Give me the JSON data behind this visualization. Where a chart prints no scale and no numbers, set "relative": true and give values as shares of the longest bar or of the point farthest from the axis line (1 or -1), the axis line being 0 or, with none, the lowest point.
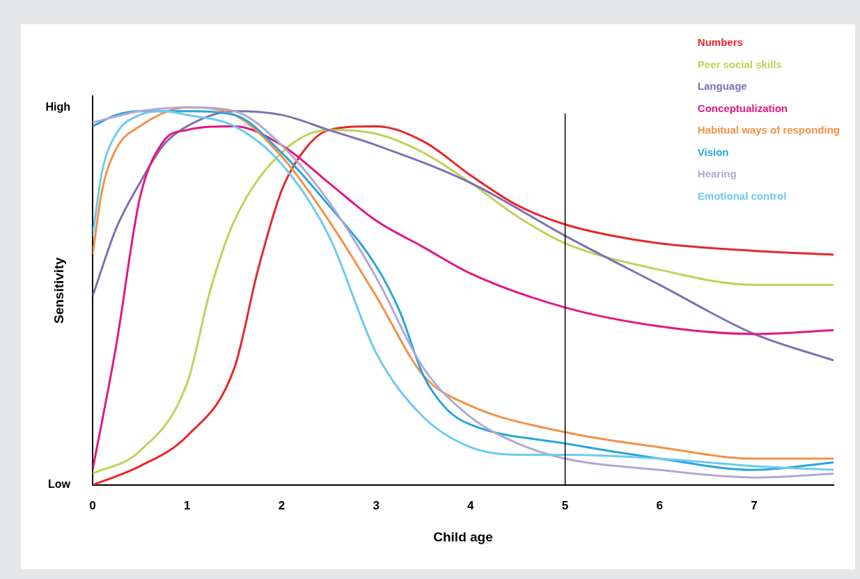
{
  "chart_data": {
    "type": "line",
    "xlabel": "Child age",
    "ylabel": "Sensitivity",
    "xlim": [
      0,
      7.84
    ],
    "xticks": [
      0,
      1,
      2,
      3,
      4,
      5,
      6,
      7
    ],
    "relative": true,
    "annotations": [
      "High",
      "Low"
    ],
    "grid": false,
    "legend": "top right",
    "marker": "none",
    "line_style": "solid",
    "ref_lines": [
      {
        "axis": "x",
        "value": 5,
        "color": "#000000"
      }
    ],
    "series": [
      {
        "name": "Numbers",
        "color": "#e8262a",
        "x": [
          0,
          0.5,
          1,
          1.5,
          1.75,
          2,
          2.25,
          2.5,
          3,
          3.5,
          4,
          4.5,
          5,
          5.5,
          6,
          7,
          7.84
        ],
        "values": [
          0,
          0.05,
          0.13,
          0.31,
          0.57,
          0.78,
          0.89,
          0.94,
          0.95,
          0.91,
          0.82,
          0.74,
          0.69,
          0.66,
          0.64,
          0.62,
          0.61
        ]
      },
      {
        "name": "Peer social skills",
        "color": "#bdd35a",
        "x": [
          0,
          0.5,
          1,
          1.25,
          1.5,
          2,
          2.5,
          3,
          3.5,
          4,
          4.5,
          5,
          6,
          7,
          7.84
        ],
        "values": [
          0.03,
          0.09,
          0.27,
          0.52,
          0.7,
          0.88,
          0.94,
          0.93,
          0.88,
          0.8,
          0.71,
          0.64,
          0.57,
          0.53,
          0.53
        ]
      },
      {
        "name": "Language",
        "color": "#7f6fb3",
        "x": [
          0,
          0.25,
          0.5,
          0.75,
          1,
          1.5,
          2,
          2.5,
          3,
          4,
          5,
          6,
          7,
          7.84
        ],
        "values": [
          0.5,
          0.68,
          0.8,
          0.9,
          0.95,
          0.99,
          0.98,
          0.94,
          0.9,
          0.8,
          0.66,
          0.53,
          0.4,
          0.33
        ]
      },
      {
        "name": "Conceptualization",
        "color": "#e6157f",
        "x": [
          0,
          0.25,
          0.5,
          0.75,
          1,
          1.5,
          2,
          2.5,
          3,
          3.5,
          4,
          5,
          6,
          7,
          7.84
        ],
        "values": [
          0.04,
          0.37,
          0.76,
          0.91,
          0.94,
          0.95,
          0.9,
          0.8,
          0.7,
          0.63,
          0.56,
          0.47,
          0.42,
          0.4,
          0.41
        ]
      },
      {
        "name": "Habitual ways of responding",
        "color": "#f39247",
        "x": [
          0,
          0.1,
          0.25,
          0.5,
          1,
          1.5,
          2,
          2.5,
          3,
          3.5,
          4,
          5,
          6,
          7,
          7.84
        ],
        "values": [
          0.61,
          0.78,
          0.89,
          0.95,
          1,
          0.98,
          0.87,
          0.7,
          0.5,
          0.29,
          0.21,
          0.14,
          0.1,
          0.07,
          0.07
        ]
      },
      {
        "name": "Vision",
        "color": "#27a5dd",
        "x": [
          0,
          0.25,
          0.5,
          1,
          1.5,
          2,
          2.5,
          3,
          3.25,
          3.5,
          3.75,
          4,
          5,
          6,
          7,
          7.84
        ],
        "values": [
          0.95,
          0.98,
          0.99,
          0.99,
          0.98,
          0.88,
          0.74,
          0.58,
          0.46,
          0.29,
          0.2,
          0.16,
          0.11,
          0.07,
          0.04,
          0.06
        ]
      },
      {
        "name": "Hearing",
        "color": "#b3a7d4",
        "x": [
          0,
          0.5,
          1,
          1.5,
          2,
          2.5,
          3,
          3.5,
          4,
          4.5,
          5,
          6,
          7,
          7.84
        ],
        "values": [
          0.96,
          0.99,
          1,
          0.99,
          0.9,
          0.75,
          0.55,
          0.31,
          0.18,
          0.11,
          0.07,
          0.04,
          0.02,
          0.03
        ]
      },
      {
        "name": "Emotional control",
        "color": "#6ccbee",
        "x": [
          0,
          0.1,
          0.25,
          0.5,
          0.75,
          1,
          1.5,
          2,
          2.5,
          3,
          3.5,
          4,
          4.5,
          5,
          6,
          7,
          7.84
        ],
        "values": [
          0.66,
          0.83,
          0.93,
          0.98,
          0.99,
          0.98,
          0.95,
          0.85,
          0.66,
          0.35,
          0.18,
          0.1,
          0.08,
          0.08,
          0.07,
          0.05,
          0.04
        ]
      }
    ]
  }
}
